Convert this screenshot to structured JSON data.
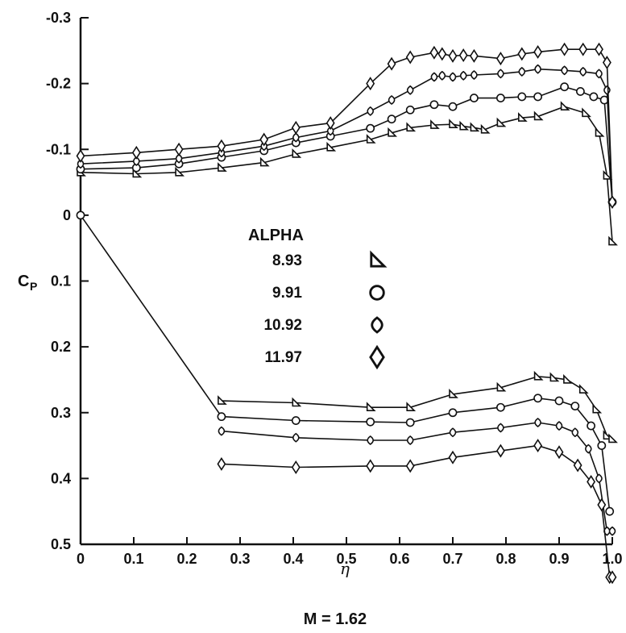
{
  "chart_data": {
    "type": "line",
    "xlabel": "η",
    "ylabel": "C",
    "ylabel_sub": "P",
    "caption": "M = 1.62",
    "xlim": [
      0,
      1.0
    ],
    "ylim": [
      -0.3,
      0.5
    ],
    "y_inverted": true,
    "grid": false,
    "x_ticks": [
      0,
      0.1,
      0.2,
      0.3,
      0.4,
      0.5,
      0.6,
      0.7,
      0.8,
      0.9,
      1.0
    ],
    "x_tick_labels": [
      "0",
      "0.1",
      "0.2",
      "0.3",
      "0.4",
      "0.5",
      "0.6",
      "0.7",
      "0.8",
      "0.9",
      "1.0"
    ],
    "y_ticks": [
      -0.3,
      -0.2,
      -0.1,
      0,
      0.1,
      0.2,
      0.3,
      0.4,
      0.5
    ],
    "y_tick_labels": [
      "-0.3",
      "-0.2",
      "-0.1",
      "0",
      "0.1",
      "0.2",
      "0.3",
      "0.4",
      "0.5"
    ],
    "legend": {
      "title": "ALPHA",
      "placement": "center",
      "entries": [
        {
          "label": "8.93",
          "marker": "triangle"
        },
        {
          "label": "9.91",
          "marker": "circle"
        },
        {
          "label": "10.92",
          "marker": "oval-diamond"
        },
        {
          "label": "11.97",
          "marker": "diamond"
        }
      ]
    },
    "series": [
      {
        "marker": "triangle",
        "upper": [
          [
            0,
            -0.065
          ],
          [
            0.105,
            -0.063
          ],
          [
            0.185,
            -0.065
          ],
          [
            0.265,
            -0.072
          ],
          [
            0.345,
            -0.08
          ],
          [
            0.405,
            -0.093
          ],
          [
            0.47,
            -0.103
          ],
          [
            0.545,
            -0.115
          ],
          [
            0.585,
            -0.125
          ],
          [
            0.62,
            -0.133
          ],
          [
            0.665,
            -0.137
          ],
          [
            0.7,
            -0.138
          ],
          [
            0.72,
            -0.135
          ],
          [
            0.74,
            -0.133
          ],
          [
            0.76,
            -0.13
          ],
          [
            0.79,
            -0.14
          ],
          [
            0.83,
            -0.148
          ],
          [
            0.86,
            -0.15
          ],
          [
            0.91,
            -0.165
          ],
          [
            0.95,
            -0.155
          ],
          [
            0.975,
            -0.125
          ],
          [
            0.99,
            -0.06
          ],
          [
            1.0,
            0.04
          ]
        ],
        "lower": [
          [
            0.265,
            0.282
          ],
          [
            0.405,
            0.285
          ],
          [
            0.545,
            0.292
          ],
          [
            0.62,
            0.292
          ],
          [
            0.7,
            0.272
          ],
          [
            0.79,
            0.262
          ],
          [
            0.86,
            0.245
          ],
          [
            0.89,
            0.247
          ],
          [
            0.915,
            0.25
          ],
          [
            0.945,
            0.265
          ],
          [
            0.97,
            0.295
          ],
          [
            0.99,
            0.335
          ],
          [
            1.0,
            0.34
          ]
        ]
      },
      {
        "marker": "circle",
        "upper": [
          [
            0,
            -0.07
          ],
          [
            0.105,
            -0.072
          ],
          [
            0.185,
            -0.078
          ],
          [
            0.265,
            -0.088
          ],
          [
            0.345,
            -0.098
          ],
          [
            0.405,
            -0.11
          ],
          [
            0.47,
            -0.12
          ],
          [
            0.545,
            -0.132
          ],
          [
            0.585,
            -0.146
          ],
          [
            0.62,
            -0.16
          ],
          [
            0.665,
            -0.168
          ],
          [
            0.7,
            -0.165
          ],
          [
            0.74,
            -0.178
          ],
          [
            0.79,
            -0.178
          ],
          [
            0.83,
            -0.18
          ],
          [
            0.86,
            -0.18
          ],
          [
            0.91,
            -0.195
          ],
          [
            0.94,
            -0.188
          ],
          [
            0.965,
            -0.18
          ],
          [
            0.985,
            -0.175
          ],
          [
            1.0,
            -0.02
          ]
        ],
        "lower": [
          [
            0,
            0
          ],
          [
            0.265,
            0.306
          ],
          [
            0.405,
            0.312
          ],
          [
            0.545,
            0.314
          ],
          [
            0.62,
            0.315
          ],
          [
            0.7,
            0.3
          ],
          [
            0.79,
            0.292
          ],
          [
            0.86,
            0.278
          ],
          [
            0.9,
            0.282
          ],
          [
            0.93,
            0.29
          ],
          [
            0.96,
            0.32
          ],
          [
            0.98,
            0.35
          ],
          [
            0.995,
            0.45
          ]
        ]
      },
      {
        "marker": "oval-diamond",
        "upper": [
          [
            0,
            -0.078
          ],
          [
            0.105,
            -0.082
          ],
          [
            0.185,
            -0.086
          ],
          [
            0.265,
            -0.095
          ],
          [
            0.345,
            -0.105
          ],
          [
            0.405,
            -0.118
          ],
          [
            0.47,
            -0.128
          ],
          [
            0.545,
            -0.158
          ],
          [
            0.585,
            -0.175
          ],
          [
            0.62,
            -0.19
          ],
          [
            0.665,
            -0.21
          ],
          [
            0.68,
            -0.212
          ],
          [
            0.7,
            -0.21
          ],
          [
            0.72,
            -0.212
          ],
          [
            0.74,
            -0.213
          ],
          [
            0.79,
            -0.215
          ],
          [
            0.83,
            -0.218
          ],
          [
            0.86,
            -0.222
          ],
          [
            0.91,
            -0.22
          ],
          [
            0.945,
            -0.218
          ],
          [
            0.975,
            -0.215
          ],
          [
            0.99,
            -0.19
          ],
          [
            1.0,
            -0.02
          ]
        ],
        "lower": [
          [
            0.265,
            0.328
          ],
          [
            0.405,
            0.338
          ],
          [
            0.545,
            0.342
          ],
          [
            0.62,
            0.342
          ],
          [
            0.7,
            0.33
          ],
          [
            0.79,
            0.323
          ],
          [
            0.86,
            0.315
          ],
          [
            0.9,
            0.32
          ],
          [
            0.93,
            0.33
          ],
          [
            0.955,
            0.355
          ],
          [
            0.975,
            0.4
          ],
          [
            0.99,
            0.48
          ],
          [
            1.0,
            0.48
          ]
        ]
      },
      {
        "marker": "diamond",
        "upper": [
          [
            0,
            -0.09
          ],
          [
            0.105,
            -0.095
          ],
          [
            0.185,
            -0.1
          ],
          [
            0.265,
            -0.105
          ],
          [
            0.345,
            -0.115
          ],
          [
            0.405,
            -0.133
          ],
          [
            0.47,
            -0.14
          ],
          [
            0.545,
            -0.2
          ],
          [
            0.585,
            -0.23
          ],
          [
            0.62,
            -0.24
          ],
          [
            0.665,
            -0.247
          ],
          [
            0.68,
            -0.245
          ],
          [
            0.7,
            -0.242
          ],
          [
            0.72,
            -0.243
          ],
          [
            0.74,
            -0.242
          ],
          [
            0.79,
            -0.238
          ],
          [
            0.83,
            -0.245
          ],
          [
            0.86,
            -0.248
          ],
          [
            0.91,
            -0.252
          ],
          [
            0.945,
            -0.252
          ],
          [
            0.975,
            -0.252
          ],
          [
            0.99,
            -0.232
          ],
          [
            1.0,
            -0.02
          ]
        ],
        "lower": [
          [
            0.265,
            0.378
          ],
          [
            0.405,
            0.383
          ],
          [
            0.545,
            0.381
          ],
          [
            0.62,
            0.381
          ],
          [
            0.7,
            0.368
          ],
          [
            0.79,
            0.358
          ],
          [
            0.86,
            0.35
          ],
          [
            0.9,
            0.36
          ],
          [
            0.935,
            0.38
          ],
          [
            0.96,
            0.405
          ],
          [
            0.98,
            0.44
          ],
          [
            0.995,
            0.55
          ],
          [
            1.0,
            0.55
          ]
        ]
      }
    ]
  }
}
